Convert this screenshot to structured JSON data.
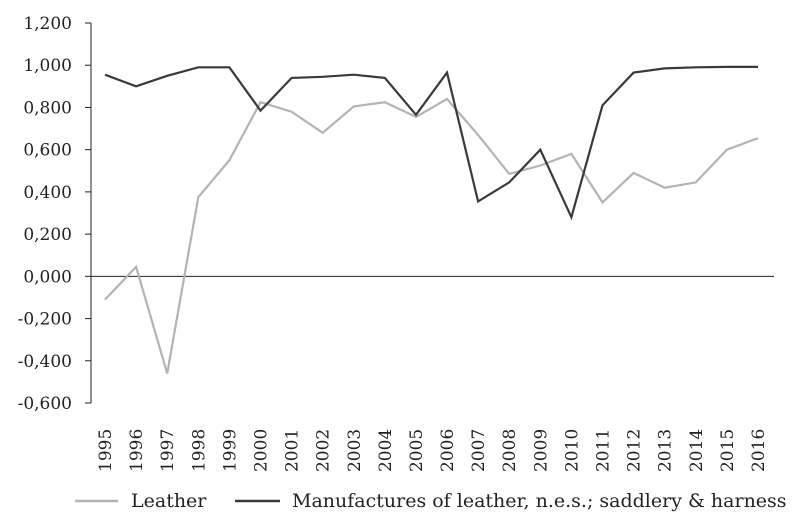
{
  "chart_data": {
    "type": "line",
    "title": "",
    "xlabel": "",
    "ylabel": "",
    "x": [
      "1995",
      "1996",
      "1997",
      "1998",
      "1999",
      "2000",
      "2001",
      "2002",
      "2003",
      "2004",
      "2005",
      "2006",
      "2007",
      "2008",
      "2009",
      "2010",
      "2011",
      "2012",
      "2013",
      "2014",
      "2015",
      "2016"
    ],
    "ylim": [
      -0.6,
      1.2
    ],
    "yticks": [
      "1,200",
      "1,000",
      "0,800",
      "0,600",
      "0,400",
      "0,200",
      "0,000",
      "-0,200",
      "-0,400",
      "-0,600"
    ],
    "ytick_values": [
      1.2,
      1.0,
      0.8,
      0.6,
      0.4,
      0.2,
      0.0,
      -0.2,
      -0.4,
      -0.6
    ],
    "grid": false,
    "legend_position": "bottom",
    "series": [
      {
        "name": "Leather",
        "color": "#b3b3b3",
        "values": [
          -0.11,
          0.045,
          -0.46,
          0.375,
          0.55,
          0.825,
          0.78,
          0.68,
          0.805,
          0.825,
          0.755,
          0.84,
          0.67,
          0.485,
          0.525,
          0.58,
          0.35,
          0.49,
          0.42,
          0.445,
          0.6,
          0.655
        ]
      },
      {
        "name": "Manufactures of leather, n.e.s.; saddlery & harness",
        "color": "#3a3a3a",
        "values": [
          0.955,
          0.9,
          0.95,
          0.99,
          0.99,
          0.785,
          0.94,
          0.945,
          0.955,
          0.94,
          0.765,
          0.965,
          0.355,
          0.445,
          0.6,
          0.28,
          0.81,
          0.965,
          0.985,
          0.99,
          0.992,
          0.992
        ]
      }
    ]
  }
}
